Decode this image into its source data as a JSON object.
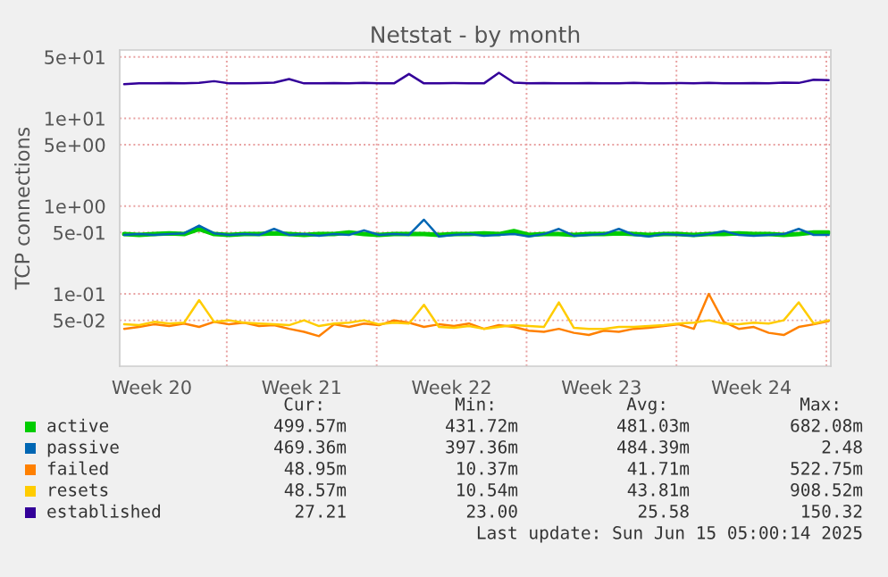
{
  "chart_data": {
    "type": "line",
    "title": "Netstat - by month",
    "ylabel": "TCP connections",
    "log": "y",
    "grid": true,
    "legend": "bottom",
    "line_style": "solid",
    "marker": "none",
    "x": [
      "2025-05-13T05:00",
      "2025-05-13T21:48",
      "2025-05-14T14:36",
      "2025-05-15T07:24",
      "2025-05-16T00:12",
      "2025-05-16T17:00",
      "2025-05-17T09:48",
      "2025-05-18T02:36",
      "2025-05-18T19:24",
      "2025-05-19T12:12",
      "2025-05-20T05:00",
      "2025-05-20T21:48",
      "2025-05-21T14:36",
      "2025-05-22T07:24",
      "2025-05-23T00:12",
      "2025-05-23T17:00",
      "2025-05-24T09:48",
      "2025-05-25T02:36",
      "2025-05-25T19:24",
      "2025-05-26T12:12",
      "2025-05-27T05:00",
      "2025-05-27T21:48",
      "2025-05-28T14:36",
      "2025-05-29T07:24",
      "2025-05-30T00:12",
      "2025-05-30T17:00",
      "2025-05-31T09:48",
      "2025-06-01T02:36",
      "2025-06-01T19:24",
      "2025-06-02T12:12",
      "2025-06-03T05:00",
      "2025-06-03T21:48",
      "2025-06-04T14:36",
      "2025-06-05T07:24",
      "2025-06-06T00:12",
      "2025-06-06T17:00",
      "2025-06-07T09:48",
      "2025-06-08T02:36",
      "2025-06-08T19:24",
      "2025-06-09T12:12",
      "2025-06-10T05:00",
      "2025-06-10T21:48",
      "2025-06-11T14:36",
      "2025-06-12T07:24",
      "2025-06-13T00:12",
      "2025-06-13T17:00",
      "2025-06-14T09:48",
      "2025-06-15T02:36"
    ],
    "xlim": [
      "2025-05-13T00:00",
      "2025-06-15T05:00"
    ],
    "xticks": [
      {
        "value": "2025-05-14T12:00",
        "label": "Week 20"
      },
      {
        "value": "2025-05-21T12:00",
        "label": "Week 21"
      },
      {
        "value": "2025-05-28T12:00",
        "label": "Week 22"
      },
      {
        "value": "2025-06-04T12:00",
        "label": "Week 23"
      },
      {
        "value": "2025-06-11T12:00",
        "label": "Week 24"
      },
      {
        "value": "2025-05-18",
        "label": null
      },
      {
        "value": "2025-05-25",
        "label": null
      },
      {
        "value": "2025-06-01",
        "label": null
      },
      {
        "value": "2025-06-08",
        "label": null
      },
      {
        "value": "2025-06-15",
        "label": null
      }
    ],
    "ylim": [
      0.015,
      60
    ],
    "yticks": [
      {
        "value": 0.05,
        "label": "5e-02"
      },
      {
        "value": 0.1,
        "label": "1e-01"
      },
      {
        "value": 0.5,
        "label": "5e-01"
      },
      {
        "value": 1,
        "label": "1e+00"
      },
      {
        "value": 5,
        "label": "5e+00"
      },
      {
        "value": 10,
        "label": "1e+01"
      },
      {
        "value": 50,
        "label": "5e+01"
      }
    ],
    "series": [
      {
        "name": "active",
        "color": "#00cc00",
        "values": [
          0.48,
          0.47,
          0.48,
          0.49,
          0.48,
          0.55,
          0.48,
          0.47,
          0.48,
          0.48,
          0.49,
          0.48,
          0.47,
          0.48,
          0.48,
          0.5,
          0.48,
          0.47,
          0.48,
          0.48,
          0.48,
          0.47,
          0.48,
          0.48,
          0.49,
          0.48,
          0.52,
          0.47,
          0.48,
          0.48,
          0.47,
          0.48,
          0.48,
          0.49,
          0.48,
          0.47,
          0.48,
          0.48,
          0.47,
          0.48,
          0.48,
          0.49,
          0.48,
          0.48,
          0.47,
          0.48,
          0.5,
          0.5
        ]
      },
      {
        "name": "passive",
        "color": "#0066b3",
        "values": [
          0.47,
          0.48,
          0.47,
          0.48,
          0.49,
          0.6,
          0.49,
          0.47,
          0.48,
          0.47,
          0.55,
          0.47,
          0.48,
          0.46,
          0.48,
          0.47,
          0.53,
          0.47,
          0.48,
          0.47,
          0.7,
          0.45,
          0.47,
          0.48,
          0.46,
          0.47,
          0.48,
          0.45,
          0.48,
          0.55,
          0.46,
          0.47,
          0.48,
          0.55,
          0.47,
          0.45,
          0.48,
          0.47,
          0.46,
          0.48,
          0.52,
          0.47,
          0.46,
          0.47,
          0.48,
          0.55,
          0.47,
          0.47
        ]
      },
      {
        "name": "failed",
        "color": "#ff8000",
        "values": [
          0.04,
          0.042,
          0.045,
          0.043,
          0.046,
          0.042,
          0.048,
          0.045,
          0.047,
          0.043,
          0.044,
          0.04,
          0.037,
          0.033,
          0.045,
          0.042,
          0.046,
          0.044,
          0.05,
          0.047,
          0.042,
          0.045,
          0.043,
          0.046,
          0.04,
          0.044,
          0.042,
          0.038,
          0.037,
          0.04,
          0.036,
          0.034,
          0.038,
          0.037,
          0.04,
          0.041,
          0.043,
          0.045,
          0.04,
          0.1,
          0.048,
          0.04,
          0.042,
          0.036,
          0.034,
          0.042,
          0.045,
          0.049
        ]
      },
      {
        "name": "resets",
        "color": "#ffcc00",
        "values": [
          0.045,
          0.044,
          0.048,
          0.046,
          0.047,
          0.085,
          0.048,
          0.05,
          0.047,
          0.046,
          0.045,
          0.044,
          0.05,
          0.043,
          0.046,
          0.047,
          0.05,
          0.045,
          0.047,
          0.046,
          0.075,
          0.042,
          0.041,
          0.043,
          0.04,
          0.042,
          0.044,
          0.043,
          0.042,
          0.08,
          0.041,
          0.04,
          0.04,
          0.042,
          0.042,
          0.043,
          0.044,
          0.046,
          0.047,
          0.05,
          0.046,
          0.045,
          0.047,
          0.046,
          0.05,
          0.08,
          0.046,
          0.05
        ]
      },
      {
        "name": "established",
        "color": "#330099",
        "values": [
          24.5,
          25,
          25,
          25.2,
          25,
          25.3,
          26.5,
          25,
          25,
          25.2,
          25.5,
          28,
          25,
          25,
          25.2,
          25,
          25.3,
          25,
          25,
          32,
          25,
          25,
          25.2,
          25,
          25,
          33,
          25.5,
          25,
          25.2,
          25,
          25,
          25.2,
          25,
          25,
          25.3,
          25,
          25,
          25.2,
          25,
          25.3,
          25,
          25,
          25.2,
          25,
          25.5,
          25.3,
          27.5,
          27.2
        ]
      }
    ],
    "annotations": [
      "Cur:",
      "Min:",
      "Avg:",
      "Max:",
      "499.57m",
      "431.72m",
      "481.03m",
      "682.08m",
      "469.36m",
      "397.36m",
      "484.39m",
      "2.48",
      "48.95m",
      "10.37m",
      "41.71m",
      "522.75m",
      "48.57m",
      "10.54m",
      "43.81m",
      "908.52m",
      "27.21",
      "23.00",
      "25.58",
      "150.32",
      "Last update: Sun Jun 15 05:00:14 2025"
    ]
  }
}
